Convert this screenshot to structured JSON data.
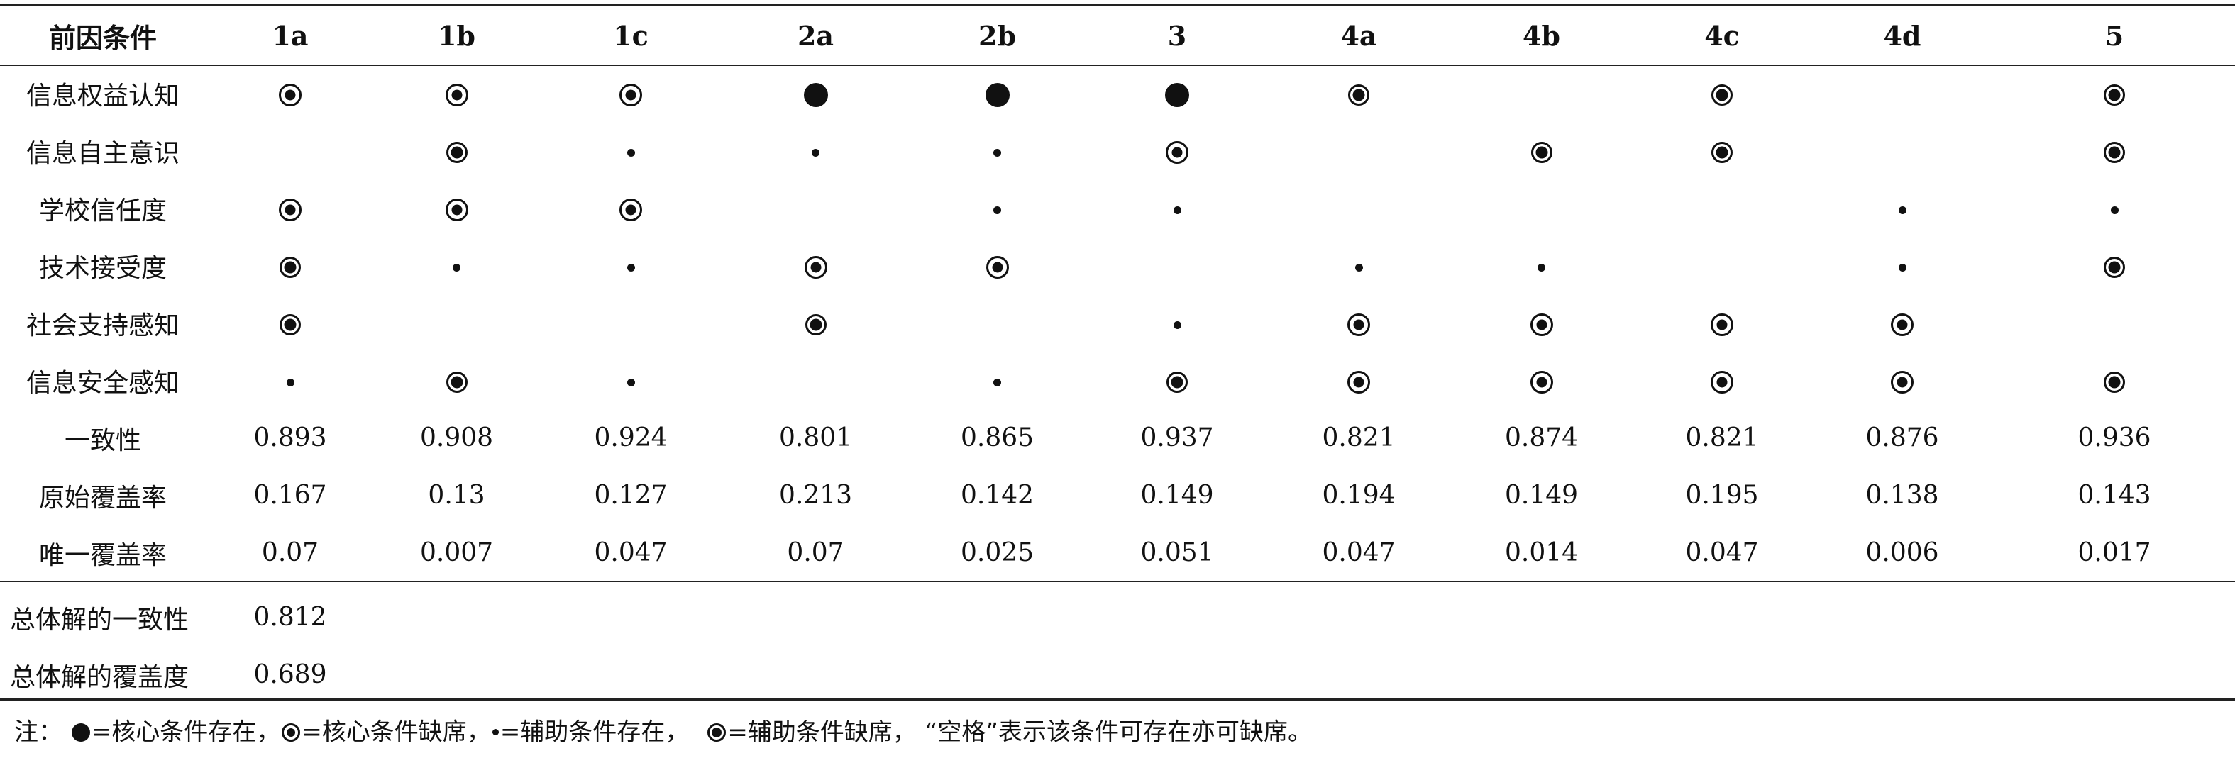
{
  "table": {
    "header_label": "前因条件",
    "columns": [
      "1a",
      "1b",
      "1c",
      "2a",
      "2b",
      "3",
      "4a",
      "4b",
      "4c",
      "4d",
      "5"
    ],
    "condition_rows": [
      {
        "label": "信息权益认知",
        "cells": [
          "core-absent-icon",
          "core-absent-icon",
          "core-absent-icon",
          "core-present-icon",
          "core-present-icon",
          "core-present-icon",
          "peripheral-absent-icon",
          "",
          "peripheral-absent-icon",
          "",
          "peripheral-absent-icon"
        ]
      },
      {
        "label": "信息自主意识",
        "cells": [
          "",
          "peripheral-absent-icon",
          "peripheral-present-icon",
          "peripheral-present-icon",
          "peripheral-present-icon",
          "core-absent-icon",
          "",
          "peripheral-absent-icon",
          "peripheral-absent-icon",
          "",
          "peripheral-absent-icon"
        ]
      },
      {
        "label": "学校信任度",
        "cells": [
          "core-absent-icon",
          "core-absent-icon",
          "core-absent-icon",
          "",
          "peripheral-present-icon",
          "peripheral-present-icon",
          "",
          "",
          "",
          "peripheral-present-icon",
          "peripheral-present-icon"
        ]
      },
      {
        "label": "技术接受度",
        "cells": [
          "peripheral-absent-icon",
          "peripheral-present-icon",
          "peripheral-present-icon",
          "core-absent-icon",
          "core-absent-icon",
          "",
          "peripheral-present-icon",
          "peripheral-present-icon",
          "",
          "peripheral-present-icon",
          "peripheral-absent-icon"
        ]
      },
      {
        "label": "社会支持感知",
        "cells": [
          "peripheral-absent-icon",
          "",
          "",
          "peripheral-absent-icon",
          "",
          "peripheral-present-icon",
          "core-absent-icon",
          "core-absent-icon",
          "core-absent-icon",
          "core-absent-icon",
          ""
        ]
      },
      {
        "label": "信息安全感知",
        "cells": [
          "peripheral-present-icon",
          "peripheral-absent-icon",
          "peripheral-present-icon",
          "",
          "peripheral-present-icon",
          "peripheral-absent-icon",
          "core-absent-icon",
          "core-absent-icon",
          "core-absent-icon",
          "core-absent-icon",
          "peripheral-absent-icon"
        ]
      }
    ],
    "metric_rows": [
      {
        "label": "一致性",
        "values": [
          "0.893",
          "0.908",
          "0.924",
          "0.801",
          "0.865",
          "0.937",
          "0.821",
          "0.874",
          "0.821",
          "0.876",
          "0.936"
        ]
      },
      {
        "label": "原始覆盖率",
        "values": [
          "0.167",
          "0.13",
          "0.127",
          "0.213",
          "0.142",
          "0.149",
          "0.194",
          "0.149",
          "0.195",
          "0.138",
          "0.143"
        ]
      },
      {
        "label": "唯一覆盖率",
        "values": [
          "0.07",
          "0.007",
          "0.047",
          "0.07",
          "0.025",
          "0.051",
          "0.047",
          "0.014",
          "0.047",
          "0.006",
          "0.017"
        ]
      }
    ],
    "summary_rows": [
      {
        "label": "总体解的一致性",
        "value": "0.812"
      },
      {
        "label": "总体解的覆盖度",
        "value": "0.689"
      }
    ]
  },
  "note": {
    "prefix": "注：",
    "items": [
      {
        "icon": "core-present-icon",
        "text": "=核心条件存在，"
      },
      {
        "icon": "core-absent-icon",
        "text": "=核心条件缺席，"
      },
      {
        "icon": "peripheral-present-icon",
        "text": "=辅助条件存在，"
      },
      {
        "icon": "peripheral-absent-icon",
        "text": "=辅助条件缺席，"
      }
    ],
    "suffix": "“空格”表示该条件可存在亦可缺席。"
  }
}
